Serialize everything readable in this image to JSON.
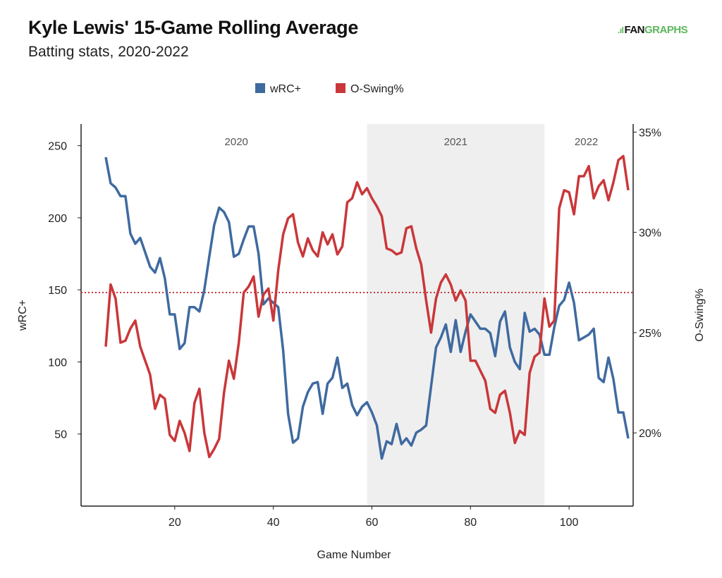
{
  "header": {
    "title": "Kyle Lewis' 15-Game Rolling Average",
    "subtitle": "Batting stats, 2020-2022"
  },
  "logo": {
    "text_left": "FAN",
    "text_right": "GRAPHS"
  },
  "chart_data": {
    "type": "line",
    "title": "Kyle Lewis' 15-Game Rolling Average",
    "subtitle": "Batting stats, 2020-2022",
    "xlabel": "Game Number",
    "ylabel": "wRC+",
    "y2label": "O-Swing%",
    "xlim": [
      1,
      113
    ],
    "ylim": [
      0,
      265
    ],
    "y2lim": [
      16.35,
      35.4
    ],
    "xticks": [
      20,
      40,
      60,
      80,
      100
    ],
    "yticks": [
      50,
      100,
      150,
      200,
      250
    ],
    "y2ticks": [
      20,
      25,
      30,
      35
    ],
    "y2tick_labels": [
      "20%",
      "25%",
      "30%",
      "35%"
    ],
    "grid": false,
    "legend_placement": "top-center",
    "reference_line": {
      "series": "O-Swing%",
      "value": 27.0,
      "style": "dotted",
      "color": "#c9373a"
    },
    "shaded_regions": [
      {
        "label": "2021",
        "from": 59,
        "to": 95
      }
    ],
    "season_labels": [
      {
        "label": "2020",
        "at": 32.5
      },
      {
        "label": "2021",
        "at": 77
      },
      {
        "label": "2022",
        "at": 103.5
      }
    ],
    "x_start": 6,
    "series": [
      {
        "name": "wRC+",
        "axis": "left",
        "color": "#3f6aa0",
        "values": [
          242,
          224,
          221,
          215,
          215,
          189,
          182,
          186,
          176,
          166,
          162,
          172,
          158,
          133,
          133,
          109,
          113,
          138,
          138,
          135,
          150,
          173,
          195,
          207,
          204,
          197,
          173,
          175,
          185,
          194,
          194,
          175,
          140,
          144,
          141,
          138,
          108,
          64,
          44,
          47,
          69,
          79,
          85,
          86,
          64,
          85,
          89,
          103,
          82,
          85,
          70,
          63,
          69,
          72,
          65,
          56,
          33,
          45,
          43,
          57,
          43,
          47,
          42,
          51,
          53,
          56,
          83,
          110,
          117,
          126,
          107,
          129,
          107,
          121,
          133,
          128,
          123,
          123,
          120,
          104,
          128,
          135,
          110,
          100,
          95,
          134,
          121,
          123,
          119,
          105,
          105,
          124,
          139,
          143,
          155,
          141,
          115,
          117,
          119,
          123,
          89,
          86,
          103,
          88,
          65,
          65,
          47
        ]
      },
      {
        "name": "O-Swing%",
        "axis": "right",
        "color": "#c9373a",
        "values": [
          24.3,
          27.4,
          26.7,
          24.5,
          24.6,
          25.2,
          25.6,
          24.3,
          23.6,
          22.9,
          21.2,
          21.9,
          21.7,
          19.9,
          19.6,
          20.6,
          20.0,
          19.1,
          21.5,
          22.2,
          20.0,
          18.8,
          19.2,
          19.7,
          22.0,
          23.6,
          22.7,
          24.5,
          27.0,
          27.3,
          27.8,
          25.8,
          26.9,
          27.2,
          25.6,
          28.1,
          29.9,
          30.7,
          30.9,
          29.5,
          28.8,
          29.7,
          29.1,
          28.8,
          30.0,
          29.4,
          29.9,
          28.9,
          29.3,
          31.5,
          31.7,
          32.5,
          31.9,
          32.2,
          31.7,
          31.3,
          30.8,
          29.2,
          29.1,
          28.9,
          29.0,
          30.2,
          30.3,
          29.2,
          28.4,
          26.6,
          25.0,
          26.7,
          27.5,
          27.9,
          27.4,
          26.6,
          27.1,
          26.6,
          23.6,
          23.6,
          23.1,
          22.6,
          21.2,
          21.0,
          21.9,
          22.1,
          21.0,
          19.5,
          20.1,
          19.9,
          23.0,
          23.8,
          24.0,
          26.7,
          25.3,
          25.6,
          31.2,
          32.1,
          32.0,
          30.9,
          32.8,
          32.8,
          33.3,
          31.7,
          32.3,
          32.6,
          31.6,
          32.5,
          33.6,
          33.8,
          32.1
        ]
      }
    ]
  }
}
